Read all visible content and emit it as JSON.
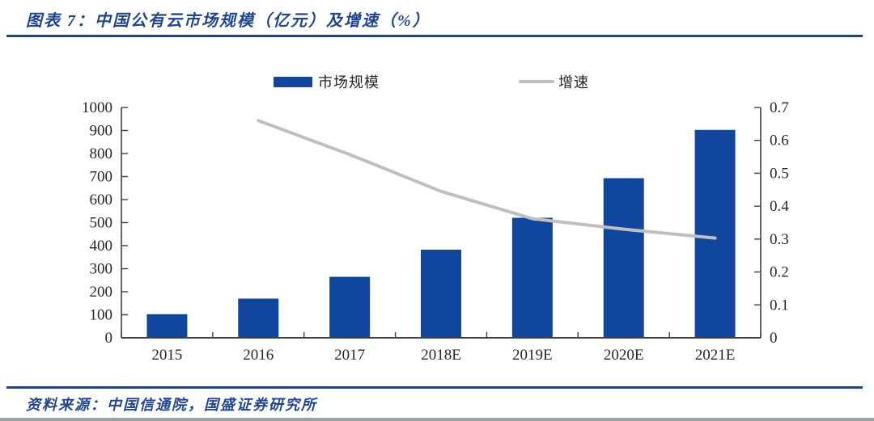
{
  "header": {
    "title": "图表 7：中国公有云市场规模（亿元）及增速（%）"
  },
  "footer": {
    "source": "资料来源：中国信通院，国盛证券研究所"
  },
  "colors": {
    "bar": "#10469E",
    "line": "#BFBFBF",
    "accent": "#1F4690",
    "axis": "#404040"
  },
  "chart_data": {
    "type": "bar",
    "subtype": "combo-bar-line-dual-axis",
    "title": "中国公有云市场规模（亿元）及增速（%）",
    "categories": [
      "2015",
      "2016",
      "2017",
      "2018E",
      "2019E",
      "2020E",
      "2021E"
    ],
    "series": [
      {
        "name": "市场规模",
        "type": "bar",
        "axis": "left",
        "color": "#10469E",
        "values": [
          102.4,
          170.1,
          264.8,
          382.5,
          521.1,
          692.9,
          902.6
        ]
      },
      {
        "name": "增速",
        "type": "line",
        "axis": "right",
        "color": "#BFBFBF",
        "values": [
          null,
          0.66,
          0.557,
          0.445,
          0.362,
          0.33,
          0.303
        ]
      }
    ],
    "left_axis": {
      "min": 0,
      "max": 1000,
      "step": 100,
      "tick_labels": [
        "0",
        "100",
        "200",
        "300",
        "400",
        "500",
        "600",
        "700",
        "800",
        "900",
        "1000"
      ]
    },
    "right_axis": {
      "min": 0,
      "max": 0.7,
      "step": 0.1,
      "tick_labels": [
        "0",
        "0.1",
        "0.2",
        "0.3",
        "0.4",
        "0.5",
        "0.6",
        "0.7"
      ]
    },
    "grid": false,
    "legend_position": "top"
  }
}
